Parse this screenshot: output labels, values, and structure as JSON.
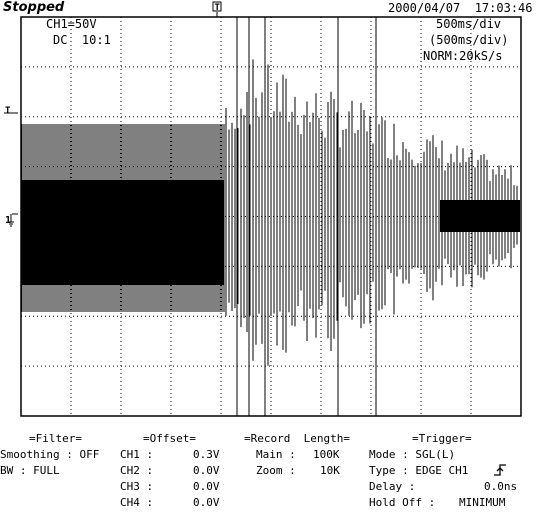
{
  "status": "Stopped",
  "datetime": "2000/04/07  17:03:46",
  "channel": {
    "scale": "CH1=50V",
    "coupling": "DC  10:1"
  },
  "timebase": {
    "main": "500ms/div",
    "zoom": "(500ms/div)",
    "sample": "NORM:20kS/s"
  },
  "markers": {
    "trigger_top": "T",
    "trigger_level": "T",
    "channel1": "1"
  },
  "panels": {
    "filter": {
      "title": "=Filter=",
      "rows": [
        {
          "label": "Smoothing : OFF",
          "value": ""
        },
        {
          "label": "BW : FULL",
          "value": ""
        }
      ]
    },
    "offset": {
      "title": "=Offset=",
      "rows": [
        {
          "label": "CH1 :",
          "value": "0.3V"
        },
        {
          "label": "CH2 :",
          "value": "0.0V"
        },
        {
          "label": "CH3 :",
          "value": "0.0V"
        },
        {
          "label": "CH4 :",
          "value": "0.0V"
        }
      ]
    },
    "record": {
      "title": "=Record  Length=",
      "rows": [
        {
          "label": "Main :",
          "value": "100K"
        },
        {
          "label": "Zoom :",
          "value": "10K"
        }
      ]
    },
    "trigger": {
      "title": "=Trigger=",
      "rows": [
        {
          "label": "Mode : SGL(L)",
          "value": ""
        },
        {
          "label": "Type : EDGE CH1",
          "value": "rising-edge-icon"
        },
        {
          "label": "Delay :",
          "value": "0.0ns"
        },
        {
          "label": "Hold Off :",
          "value": "MINIMUM"
        }
      ]
    }
  }
}
